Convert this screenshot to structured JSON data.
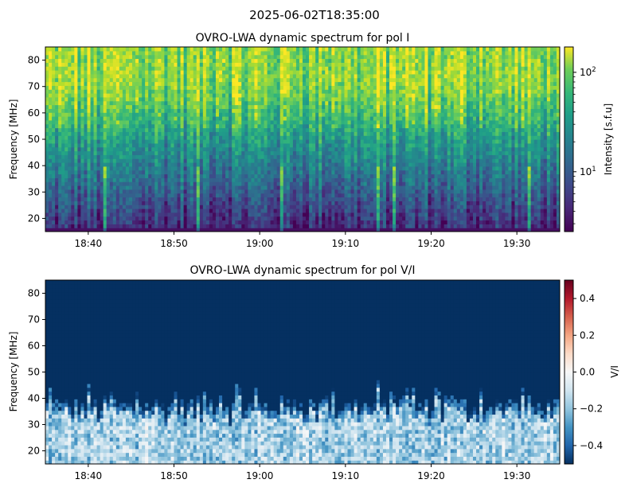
{
  "figure_title": "2025-06-02T18:35:00",
  "chart_data": [
    {
      "type": "heatmap",
      "title": "OVRO-LWA dynamic spectrum for pol I",
      "xlabel": "",
      "ylabel": "Frequency [MHz]",
      "x_range": [
        "18:35",
        "19:35"
      ],
      "xticks": [
        "18:40",
        "18:50",
        "19:00",
        "19:10",
        "19:20",
        "19:30"
      ],
      "ylim": [
        15,
        85
      ],
      "yticks": [
        20,
        30,
        40,
        50,
        60,
        70,
        80
      ],
      "colormap": "viridis",
      "colorbar": {
        "label": "Intensity [s.f.u]",
        "scale": "log",
        "range": [
          2.5,
          180
        ],
        "ticks": [
          {
            "base": "10",
            "exp": "1",
            "value": 10
          },
          {
            "base": "10",
            "exp": "2",
            "value": 100
          }
        ]
      },
      "description_values": {
        "low_freq_intensity_sfu": 4,
        "high_freq_intensity_sfu": 80,
        "bright_patches_sfu": 150
      }
    },
    {
      "type": "heatmap",
      "title": "OVRO-LWA dynamic spectrum for pol V/I",
      "xlabel": "",
      "ylabel": "Frequency [MHz]",
      "x_range": [
        "18:35",
        "19:35"
      ],
      "xticks": [
        "18:40",
        "18:50",
        "19:00",
        "19:10",
        "19:20",
        "19:30"
      ],
      "ylim": [
        15,
        85
      ],
      "yticks": [
        20,
        30,
        40,
        50,
        60,
        70,
        80
      ],
      "colormap": "RdBu_r",
      "colorbar": {
        "label": "V/I",
        "scale": "linear",
        "range": [
          -0.5,
          0.5
        ],
        "ticks": [
          "0.4",
          "0.2",
          "0.0",
          "−0.2",
          "−0.4"
        ]
      },
      "description_values": {
        "above_40MHz_value": -0.5,
        "below_35MHz_value": -0.1
      }
    }
  ]
}
